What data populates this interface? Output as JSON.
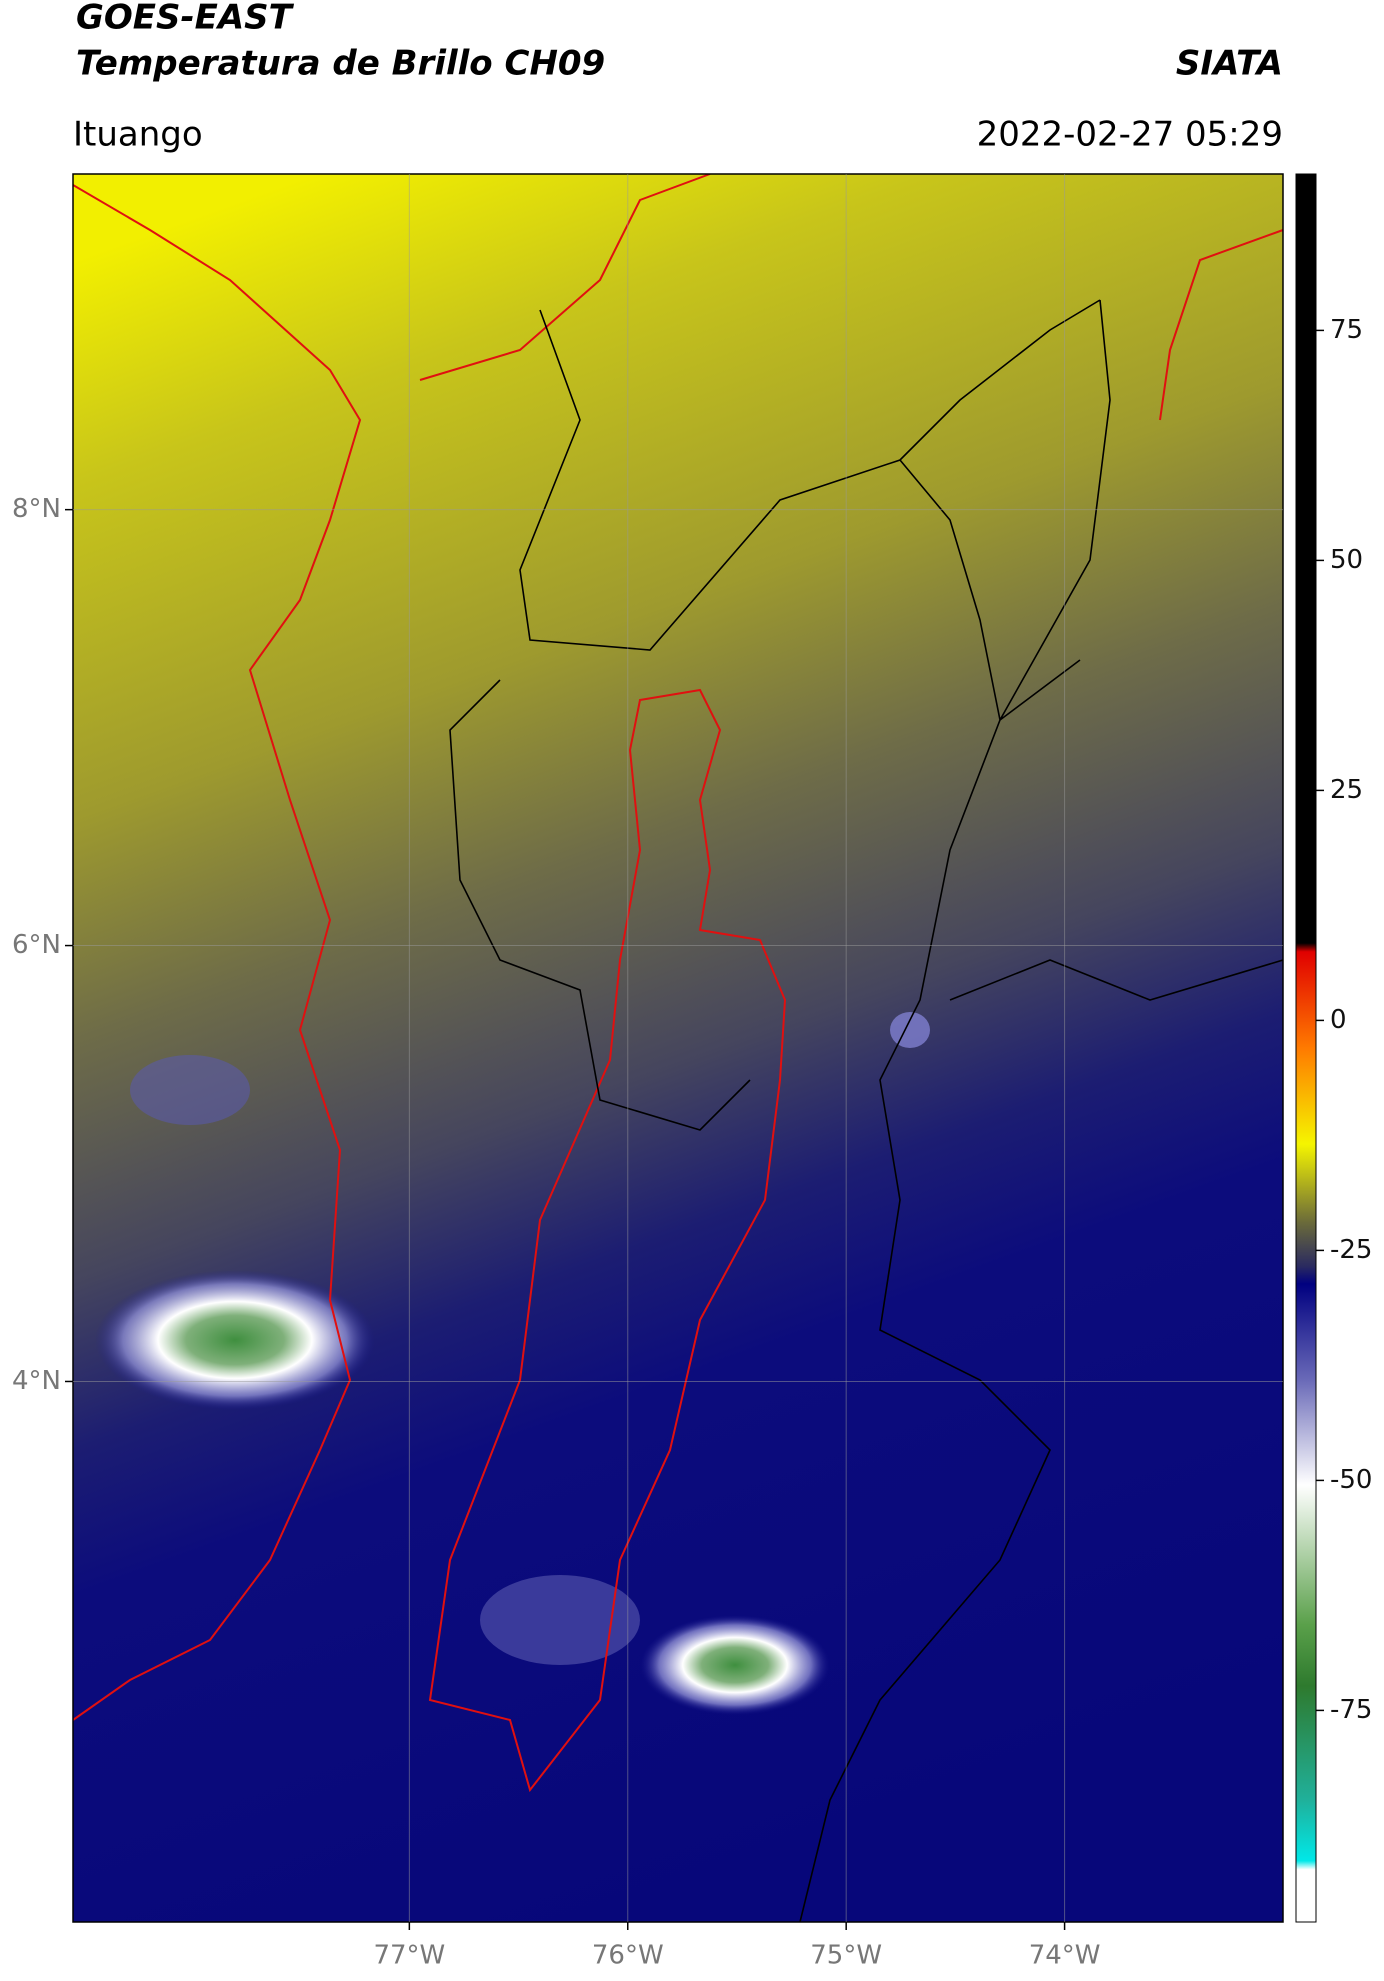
{
  "header": {
    "title": "GOES-EAST",
    "subtitle": "Temperatura de Brillo CH09",
    "source": "SIATA",
    "location": "Ituango",
    "timestamp": "2022-02-27 05:29"
  },
  "map": {
    "xlim": [
      -78.54,
      -73.0
    ],
    "ylim": [
      1.52,
      9.54
    ],
    "xticks": [
      {
        "value": -77,
        "label": "77°W"
      },
      {
        "value": -76,
        "label": "76°W"
      },
      {
        "value": -75,
        "label": "75°W"
      },
      {
        "value": -74,
        "label": "74°W"
      }
    ],
    "yticks": [
      {
        "value": 8,
        "label": "8°N"
      },
      {
        "value": 6,
        "label": "6°N"
      },
      {
        "value": 4,
        "label": "4°N"
      }
    ],
    "grid": true
  },
  "colorbar": {
    "clim": [
      -98,
      92
    ],
    "ticks": [
      75,
      50,
      25,
      0,
      -25,
      -50,
      -75
    ]
  }
}
